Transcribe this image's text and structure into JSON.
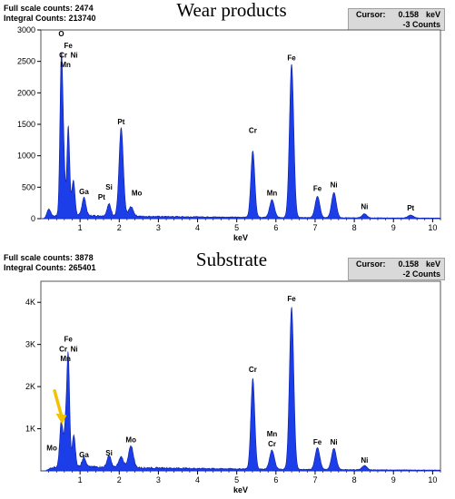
{
  "chart_data": [
    {
      "type": "area",
      "title": "Wear products",
      "full_scale_label": "Full scale counts:",
      "full_scale_value": "2474",
      "integral_label": "Integral Counts:",
      "integral_value": "213740",
      "cursor": {
        "label": "Cursor:",
        "value": "0.158",
        "unit": "keV",
        "counts": "-3 Counts"
      },
      "xlabel": "keV",
      "ylabel": "",
      "xlim": [
        0,
        10.2
      ],
      "ylim": [
        0,
        3000
      ],
      "x_ticks": [
        1,
        2,
        3,
        4,
        5,
        6,
        7,
        8,
        9,
        10
      ],
      "y_ticks": [
        {
          "v": 0,
          "label": "0"
        },
        {
          "v": 500,
          "label": "500"
        },
        {
          "v": 1000,
          "label": "1000"
        },
        {
          "v": 1500,
          "label": "1500"
        },
        {
          "v": 2000,
          "label": "2000"
        },
        {
          "v": 2500,
          "label": "2500"
        },
        {
          "v": 3000,
          "label": "3000"
        }
      ],
      "background": 55,
      "peaks": [
        {
          "x": 0.52,
          "y": 2370,
          "w": 0.035
        },
        {
          "x": 0.7,
          "y": 1420,
          "w": 0.035
        },
        {
          "x": 0.58,
          "y": 900,
          "w": 0.035
        },
        {
          "x": 0.83,
          "y": 560,
          "w": 0.04
        },
        {
          "x": 0.2,
          "y": 130,
          "w": 0.05
        },
        {
          "x": 1.1,
          "y": 290,
          "w": 0.05
        },
        {
          "x": 1.74,
          "y": 190,
          "w": 0.05
        },
        {
          "x": 2.05,
          "y": 1400,
          "w": 0.055
        },
        {
          "x": 2.3,
          "y": 150,
          "w": 0.06
        },
        {
          "x": 5.41,
          "y": 1060,
          "w": 0.05
        },
        {
          "x": 5.9,
          "y": 280,
          "w": 0.06
        },
        {
          "x": 6.4,
          "y": 2440,
          "w": 0.055
        },
        {
          "x": 7.06,
          "y": 340,
          "w": 0.06
        },
        {
          "x": 7.48,
          "y": 400,
          "w": 0.06
        },
        {
          "x": 8.26,
          "y": 65,
          "w": 0.06
        },
        {
          "x": 9.44,
          "y": 45,
          "w": 0.07
        }
      ],
      "annotations": [
        {
          "text": "O",
          "x": 0.52,
          "y": 2900
        },
        {
          "text": "Fe",
          "x": 0.7,
          "y": 2710
        },
        {
          "text": "Cr",
          "x": 0.57,
          "y": 2560
        },
        {
          "text": "Ni",
          "x": 0.85,
          "y": 2560
        },
        {
          "text": "Mn",
          "x": 0.63,
          "y": 2410
        },
        {
          "text": "Pt",
          "x": 2.05,
          "y": 1500
        },
        {
          "text": "Si",
          "x": 1.74,
          "y": 460
        },
        {
          "text": "Ga",
          "x": 1.1,
          "y": 390
        },
        {
          "text": "Pt",
          "x": 1.55,
          "y": 300
        },
        {
          "text": "Mo",
          "x": 2.45,
          "y": 370
        },
        {
          "text": "Cr",
          "x": 5.41,
          "y": 1360
        },
        {
          "text": "Mn",
          "x": 5.9,
          "y": 370
        },
        {
          "text": "Fe",
          "x": 6.4,
          "y": 2520
        },
        {
          "text": "Fe",
          "x": 7.06,
          "y": 440
        },
        {
          "text": "Ni",
          "x": 7.48,
          "y": 500
        },
        {
          "text": "Ni",
          "x": 8.26,
          "y": 150
        },
        {
          "text": "Pt",
          "x": 9.44,
          "y": 130
        }
      ]
    },
    {
      "type": "area",
      "title": "Substrate",
      "full_scale_label": "Full scale counts:",
      "full_scale_value": "3878",
      "integral_label": "Integral Counts:",
      "integral_value": "265401",
      "cursor": {
        "label": "Cursor:",
        "value": "0.158",
        "unit": "keV",
        "counts": "-2 Counts"
      },
      "xlabel": "keV",
      "ylabel": "",
      "xlim": [
        0,
        10.2
      ],
      "ylim": [
        0,
        4500
      ],
      "x_ticks": [
        1,
        2,
        3,
        4,
        5,
        6,
        7,
        8,
        9,
        10
      ],
      "y_ticks": [
        {
          "v": 1000,
          "label": "1K"
        },
        {
          "v": 2000,
          "label": "2K"
        },
        {
          "v": 3000,
          "label": "3K"
        },
        {
          "v": 4000,
          "label": "4K"
        }
      ],
      "background": 110,
      "peaks": [
        {
          "x": 0.52,
          "y": 1050,
          "w": 0.04
        },
        {
          "x": 0.63,
          "y": 950,
          "w": 0.04
        },
        {
          "x": 0.7,
          "y": 2500,
          "w": 0.035
        },
        {
          "x": 0.84,
          "y": 750,
          "w": 0.04
        },
        {
          "x": 1.1,
          "y": 230,
          "w": 0.05
        },
        {
          "x": 1.74,
          "y": 280,
          "w": 0.05
        },
        {
          "x": 2.05,
          "y": 250,
          "w": 0.06
        },
        {
          "x": 2.3,
          "y": 520,
          "w": 0.06
        },
        {
          "x": 5.41,
          "y": 2150,
          "w": 0.05
        },
        {
          "x": 5.9,
          "y": 450,
          "w": 0.06
        },
        {
          "x": 6.4,
          "y": 3850,
          "w": 0.055
        },
        {
          "x": 7.06,
          "y": 520,
          "w": 0.06
        },
        {
          "x": 7.48,
          "y": 510,
          "w": 0.06
        },
        {
          "x": 8.26,
          "y": 100,
          "w": 0.06
        }
      ],
      "annotations": [
        {
          "text": "Fe",
          "x": 0.7,
          "y": 3070
        },
        {
          "text": "Cr",
          "x": 0.57,
          "y": 2830
        },
        {
          "text": "Ni",
          "x": 0.85,
          "y": 2830
        },
        {
          "text": "Mn",
          "x": 0.63,
          "y": 2600
        },
        {
          "text": "Mo",
          "x": 0.28,
          "y": 480
        },
        {
          "text": "Ga",
          "x": 1.1,
          "y": 320
        },
        {
          "text": "Si",
          "x": 1.74,
          "y": 370
        },
        {
          "text": "Mo",
          "x": 2.3,
          "y": 680
        },
        {
          "text": "Cr",
          "x": 5.41,
          "y": 2350
        },
        {
          "text": "Mn",
          "x": 5.9,
          "y": 820
        },
        {
          "text": "Cr",
          "x": 5.9,
          "y": 580
        },
        {
          "text": "Fe",
          "x": 6.4,
          "y": 4030
        },
        {
          "text": "Fe",
          "x": 7.06,
          "y": 620
        },
        {
          "text": "Ni",
          "x": 7.48,
          "y": 620
        },
        {
          "text": "Ni",
          "x": 8.26,
          "y": 190
        }
      ],
      "arrow": {
        "color": "#f2c200",
        "from": [
          0.35,
          1900
        ],
        "to": [
          0.52,
          1150
        ]
      }
    }
  ],
  "colors": {
    "spectrum": "#1c3ee8",
    "spectrum_dark": "#0a1fa8",
    "plot_bg": "#ffffff"
  }
}
